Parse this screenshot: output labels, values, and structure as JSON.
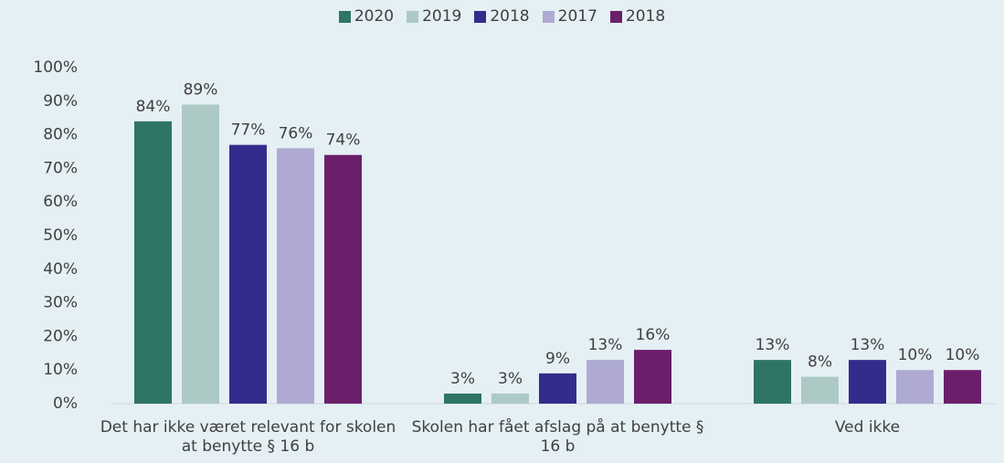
{
  "chart_data": {
    "type": "bar",
    "categories": [
      "Det har ikke været relevant for skolen at benytte § 16 b",
      "Skolen har fået afslag på at benytte § 16 b",
      "Ved ikke"
    ],
    "series": [
      {
        "name": "2020",
        "color": "#2e7566",
        "values": [
          84,
          3,
          13
        ],
        "value_labels": [
          "84%",
          "3%",
          "13%"
        ]
      },
      {
        "name": "2019",
        "color": "#adc9c6",
        "values": [
          89,
          3,
          8
        ],
        "value_labels": [
          "89%",
          "3%",
          "8%"
        ]
      },
      {
        "name": "2018",
        "color": "#342c8c",
        "values": [
          77,
          9,
          13
        ],
        "value_labels": [
          "77%",
          "9%",
          "13%"
        ]
      },
      {
        "name": "2017",
        "color": "#aeaad4",
        "values": [
          76,
          13,
          10
        ],
        "value_labels": [
          "76%",
          "13%",
          "10%"
        ]
      },
      {
        "name": "2018",
        "color": "#6b1f6b",
        "values": [
          74,
          16,
          10
        ],
        "value_labels": [
          "74%",
          "16%",
          "10%"
        ]
      }
    ],
    "ylim": [
      0,
      100
    ],
    "yticks": [
      {
        "value": 0,
        "label": "0%"
      },
      {
        "value": 10,
        "label": "10%"
      },
      {
        "value": 20,
        "label": "20%"
      },
      {
        "value": 30,
        "label": "30%"
      },
      {
        "value": 40,
        "label": "40%"
      },
      {
        "value": 50,
        "label": "50%"
      },
      {
        "value": 60,
        "label": "60%"
      },
      {
        "value": 70,
        "label": "70%"
      },
      {
        "value": 80,
        "label": "80%"
      },
      {
        "value": 90,
        "label": "90%"
      },
      {
        "value": 100,
        "label": "100%"
      }
    ],
    "grid": false,
    "legend": "top"
  }
}
